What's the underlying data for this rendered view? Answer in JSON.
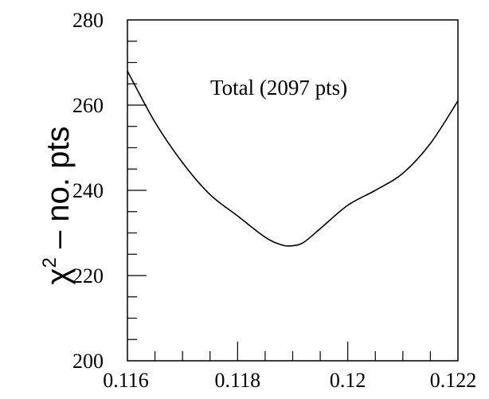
{
  "chart_data": {
    "type": "line",
    "title": "",
    "xlabel": "",
    "ylabel": {
      "symbol": "χ",
      "superscript": "2",
      "rest": " – no. pts"
    },
    "annotation": "Total (2097 pts)",
    "xlim": [
      0.116,
      0.122
    ],
    "ylim": [
      200,
      280
    ],
    "x_ticks": [
      {
        "value": 0.116,
        "label": "0.116"
      },
      {
        "value": 0.118,
        "label": "0.118"
      },
      {
        "value": 0.12,
        "label": "0.12"
      },
      {
        "value": 0.122,
        "label": "0.122"
      }
    ],
    "y_ticks": [
      {
        "value": 200,
        "label": "200"
      },
      {
        "value": 220,
        "label": "220"
      },
      {
        "value": 240,
        "label": "240"
      },
      {
        "value": 260,
        "label": "260"
      },
      {
        "value": 280,
        "label": "280"
      }
    ],
    "x_minor_step": 0.0005,
    "y_minor_step": 5,
    "grid": false,
    "legend": "none",
    "line_color": "#000000",
    "series": [
      {
        "x": [
          0.116,
          0.1165,
          0.117,
          0.1175,
          0.118,
          0.1185,
          0.1188,
          0.119,
          0.1192,
          0.1195,
          0.12,
          0.1205,
          0.121,
          0.1215,
          0.122
        ],
        "y": [
          268.0,
          256.0,
          246.5,
          239.0,
          234.0,
          229.0,
          227.2,
          227.0,
          227.8,
          231.0,
          236.5,
          240.0,
          244.0,
          251.0,
          261.0
        ]
      }
    ]
  }
}
